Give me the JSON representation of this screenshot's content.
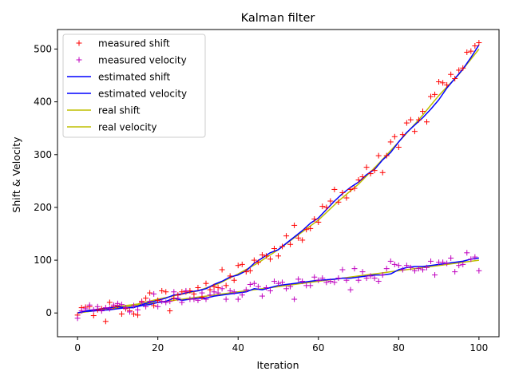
{
  "chart_data": {
    "type": "line",
    "title": "Kalman filter",
    "xlabel": "Iteration",
    "ylabel": "Shift & Velocity",
    "xlim": [
      -5,
      105
    ],
    "ylim": [
      -45,
      537
    ],
    "xticks": [
      0,
      20,
      40,
      60,
      80,
      100
    ],
    "yticks": [
      0,
      100,
      200,
      300,
      400,
      500
    ],
    "grid": false,
    "legend_position": "upper-left",
    "colors": {
      "measured_shift": "#ff0000",
      "measured_velocity": "#bf00bf",
      "estimated": "#0000ff",
      "real": "#bfbf00"
    },
    "legend": [
      {
        "label": "measured shift",
        "marker": "+",
        "color": "#ff0000"
      },
      {
        "label": "measured velocity",
        "marker": "+",
        "color": "#bf00bf"
      },
      {
        "label": "estimated shift",
        "line": true,
        "color": "#0000ff"
      },
      {
        "label": "estimated velocity",
        "line": true,
        "color": "#0000ff"
      },
      {
        "label": "real shift",
        "line": true,
        "color": "#bfbf00"
      },
      {
        "label": "real velocity",
        "line": true,
        "color": "#bfbf00"
      }
    ],
    "series": [
      {
        "name": "measured shift",
        "style": "marker",
        "x": [
          0,
          1,
          2,
          3,
          4,
          5,
          6,
          7,
          8,
          9,
          10,
          11,
          12,
          13,
          14,
          15,
          16,
          17,
          18,
          19,
          20,
          21,
          22,
          23,
          24,
          25,
          26,
          27,
          28,
          29,
          30,
          31,
          32,
          33,
          34,
          35,
          36,
          37,
          38,
          39,
          40,
          41,
          42,
          43,
          44,
          45,
          46,
          47,
          48,
          49,
          50,
          51,
          52,
          53,
          54,
          55,
          56,
          57,
          58,
          59,
          60,
          61,
          62,
          63,
          64,
          65,
          66,
          67,
          68,
          69,
          70,
          71,
          72,
          73,
          74,
          75,
          76,
          77,
          78,
          79,
          80,
          81,
          82,
          83,
          84,
          85,
          86,
          87,
          88,
          89,
          90,
          91,
          92,
          93,
          94,
          95,
          96,
          97,
          98,
          99,
          100
        ],
        "y": [
          -4,
          10,
          11,
          12,
          -5,
          6,
          8,
          -16,
          20,
          12,
          14,
          -2,
          8,
          4,
          -2,
          -4,
          22,
          28,
          38,
          14,
          24,
          42,
          40,
          4,
          28,
          34,
          40,
          40,
          42,
          36,
          48,
          30,
          56,
          44,
          50,
          48,
          82,
          52,
          70,
          62,
          90,
          92,
          78,
          80,
          100,
          96,
          110,
          108,
          102,
          122,
          108,
          126,
          146,
          130,
          166,
          142,
          138,
          158,
          160,
          178,
          172,
          202,
          200,
          212,
          234,
          210,
          228,
          218,
          234,
          236,
          252,
          258,
          276,
          264,
          270,
          298,
          266,
          298,
          324,
          334,
          314,
          338,
          360,
          366,
          344,
          366,
          382,
          362,
          410,
          414,
          438,
          436,
          432,
          452,
          444,
          460,
          464,
          494,
          496,
          506,
          512
        ]
      },
      {
        "name": "measured velocity",
        "style": "marker",
        "x": [
          0,
          1,
          2,
          3,
          4,
          5,
          6,
          7,
          8,
          9,
          10,
          11,
          12,
          13,
          14,
          15,
          16,
          17,
          18,
          19,
          20,
          21,
          22,
          23,
          24,
          25,
          26,
          27,
          28,
          29,
          30,
          31,
          32,
          33,
          34,
          35,
          36,
          37,
          38,
          39,
          40,
          41,
          42,
          43,
          44,
          45,
          46,
          47,
          48,
          49,
          50,
          51,
          52,
          53,
          54,
          55,
          56,
          57,
          58,
          59,
          60,
          61,
          62,
          63,
          64,
          65,
          66,
          67,
          68,
          69,
          70,
          71,
          72,
          73,
          74,
          75,
          76,
          77,
          78,
          79,
          80,
          81,
          82,
          83,
          84,
          85,
          86,
          87,
          88,
          89,
          90,
          91,
          92,
          93,
          94,
          95,
          96,
          97,
          98,
          99,
          100
        ],
        "y": [
          -10,
          4,
          8,
          15,
          6,
          12,
          4,
          10,
          8,
          15,
          18,
          16,
          10,
          2,
          14,
          6,
          20,
          12,
          22,
          36,
          12,
          22,
          20,
          22,
          40,
          28,
          20,
          42,
          26,
          26,
          24,
          38,
          26,
          34,
          40,
          38,
          46,
          26,
          42,
          40,
          26,
          34,
          44,
          54,
          56,
          50,
          32,
          48,
          42,
          60,
          56,
          58,
          46,
          50,
          26,
          64,
          60,
          52,
          52,
          68,
          62,
          66,
          58,
          60,
          58,
          66,
          82,
          62,
          44,
          84,
          62,
          78,
          66,
          70,
          66,
          60,
          72,
          84,
          98,
          92,
          90,
          82,
          90,
          86,
          80,
          84,
          82,
          86,
          98,
          72,
          96,
          96,
          94,
          104,
          78,
          90,
          92,
          114,
          102,
          106,
          80
        ]
      },
      {
        "name": "estimated shift",
        "style": "line",
        "x": [
          0,
          2,
          4,
          6,
          8,
          10,
          12,
          14,
          16,
          18,
          20,
          22,
          24,
          26,
          28,
          30,
          32,
          34,
          36,
          38,
          40,
          42,
          44,
          46,
          48,
          50,
          52,
          54,
          56,
          58,
          60,
          62,
          64,
          66,
          68,
          70,
          72,
          74,
          76,
          78,
          80,
          82,
          84,
          86,
          88,
          90,
          92,
          94,
          96,
          98,
          100
        ],
        "y": [
          0,
          4,
          6,
          8,
          10,
          12,
          10,
          10,
          16,
          20,
          24,
          28,
          34,
          36,
          40,
          42,
          46,
          54,
          60,
          68,
          72,
          80,
          94,
          104,
          114,
          120,
          132,
          144,
          156,
          170,
          180,
          196,
          212,
          226,
          238,
          248,
          262,
          272,
          290,
          304,
          324,
          342,
          356,
          370,
          386,
          404,
          426,
          444,
          462,
          484,
          508
        ]
      },
      {
        "name": "estimated velocity",
        "style": "line",
        "x": [
          0,
          2,
          4,
          6,
          8,
          10,
          12,
          14,
          16,
          18,
          20,
          22,
          24,
          26,
          28,
          30,
          32,
          34,
          36,
          38,
          40,
          42,
          44,
          46,
          48,
          50,
          52,
          54,
          56,
          58,
          60,
          62,
          64,
          66,
          68,
          70,
          72,
          74,
          76,
          78,
          80,
          82,
          84,
          86,
          88,
          90,
          92,
          94,
          96,
          98,
          100
        ],
        "y": [
          0,
          3,
          4,
          5,
          6,
          8,
          10,
          11,
          14,
          16,
          20,
          22,
          28,
          24,
          26,
          28,
          28,
          32,
          34,
          36,
          38,
          40,
          46,
          44,
          48,
          52,
          54,
          56,
          58,
          60,
          62,
          63,
          64,
          66,
          66,
          68,
          70,
          72,
          72,
          74,
          82,
          86,
          88,
          88,
          90,
          92,
          94,
          96,
          98,
          102,
          104
        ]
      },
      {
        "name": "real shift",
        "style": "line",
        "x": [
          0,
          5,
          10,
          15,
          20,
          25,
          30,
          35,
          40,
          45,
          50,
          55,
          60,
          65,
          70,
          75,
          80,
          85,
          90,
          95,
          100
        ],
        "y": [
          0,
          5,
          12,
          17,
          26,
          34,
          42,
          55,
          74,
          95,
          120,
          148,
          176,
          212,
          244,
          283,
          324,
          366,
          412,
          452,
          500
        ]
      },
      {
        "name": "real velocity",
        "style": "line",
        "x": [
          0,
          5,
          10,
          15,
          20,
          25,
          30,
          35,
          40,
          45,
          50,
          55,
          60,
          65,
          70,
          75,
          80,
          85,
          90,
          95,
          100
        ],
        "y": [
          0,
          5,
          10,
          15,
          20,
          25,
          30,
          35,
          40,
          45,
          50,
          55,
          60,
          65,
          70,
          75,
          80,
          85,
          90,
          95,
          100
        ]
      }
    ]
  }
}
